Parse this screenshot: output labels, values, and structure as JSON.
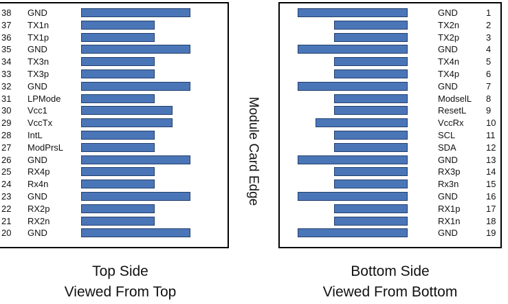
{
  "edge_label": "Module Card Edge",
  "colors": {
    "bar_fill": "#4a76b8",
    "bar_border": "#233e6b"
  },
  "top_side": {
    "caption_line1": "Top Side",
    "caption_line2": "Viewed From Top",
    "pins": [
      {
        "num": "38",
        "signal": "GND",
        "bar": "long"
      },
      {
        "num": "37",
        "signal": "TX1n",
        "bar": "short"
      },
      {
        "num": "36",
        "signal": "TX1p",
        "bar": "short"
      },
      {
        "num": "35",
        "signal": "GND",
        "bar": "long"
      },
      {
        "num": "34",
        "signal": "TX3n",
        "bar": "short"
      },
      {
        "num": "33",
        "signal": "TX3p",
        "bar": "short"
      },
      {
        "num": "32",
        "signal": "GND",
        "bar": "long"
      },
      {
        "num": "31",
        "signal": "LPMode",
        "bar": "short"
      },
      {
        "num": "30",
        "signal": "Vcc1",
        "bar": "medium"
      },
      {
        "num": "29",
        "signal": "VccTx",
        "bar": "medium"
      },
      {
        "num": "28",
        "signal": "IntL",
        "bar": "short"
      },
      {
        "num": "27",
        "signal": "ModPrsL",
        "bar": "short"
      },
      {
        "num": "26",
        "signal": "GND",
        "bar": "long"
      },
      {
        "num": "25",
        "signal": "RX4p",
        "bar": "short"
      },
      {
        "num": "24",
        "signal": "Rx4n",
        "bar": "short"
      },
      {
        "num": "23",
        "signal": "GND",
        "bar": "long"
      },
      {
        "num": "22",
        "signal": "RX2p",
        "bar": "short"
      },
      {
        "num": "21",
        "signal": "RX2n",
        "bar": "short"
      },
      {
        "num": "20",
        "signal": "GND",
        "bar": "long"
      }
    ]
  },
  "bottom_side": {
    "caption_line1": "Bottom Side",
    "caption_line2": "Viewed From Bottom",
    "pins": [
      {
        "num": "1",
        "signal": "GND",
        "bar": "long"
      },
      {
        "num": "2",
        "signal": "TX2n",
        "bar": "short"
      },
      {
        "num": "3",
        "signal": "TX2p",
        "bar": "short"
      },
      {
        "num": "4",
        "signal": "GND",
        "bar": "long"
      },
      {
        "num": "5",
        "signal": "TX4n",
        "bar": "short"
      },
      {
        "num": "6",
        "signal": "TX4p",
        "bar": "short"
      },
      {
        "num": "7",
        "signal": "GND",
        "bar": "long"
      },
      {
        "num": "8",
        "signal": "ModselL",
        "bar": "short"
      },
      {
        "num": "9",
        "signal": "ResetL",
        "bar": "short"
      },
      {
        "num": "10",
        "signal": "VccRx",
        "bar": "medium"
      },
      {
        "num": "11",
        "signal": "SCL",
        "bar": "short"
      },
      {
        "num": "12",
        "signal": "SDA",
        "bar": "short"
      },
      {
        "num": "13",
        "signal": "GND",
        "bar": "long"
      },
      {
        "num": "14",
        "signal": "RX3p",
        "bar": "short"
      },
      {
        "num": "15",
        "signal": "Rx3n",
        "bar": "short"
      },
      {
        "num": "16",
        "signal": "GND",
        "bar": "long"
      },
      {
        "num": "17",
        "signal": "RX1p",
        "bar": "short"
      },
      {
        "num": "18",
        "signal": "RX1n",
        "bar": "short"
      },
      {
        "num": "19",
        "signal": "GND",
        "bar": "long"
      }
    ]
  }
}
